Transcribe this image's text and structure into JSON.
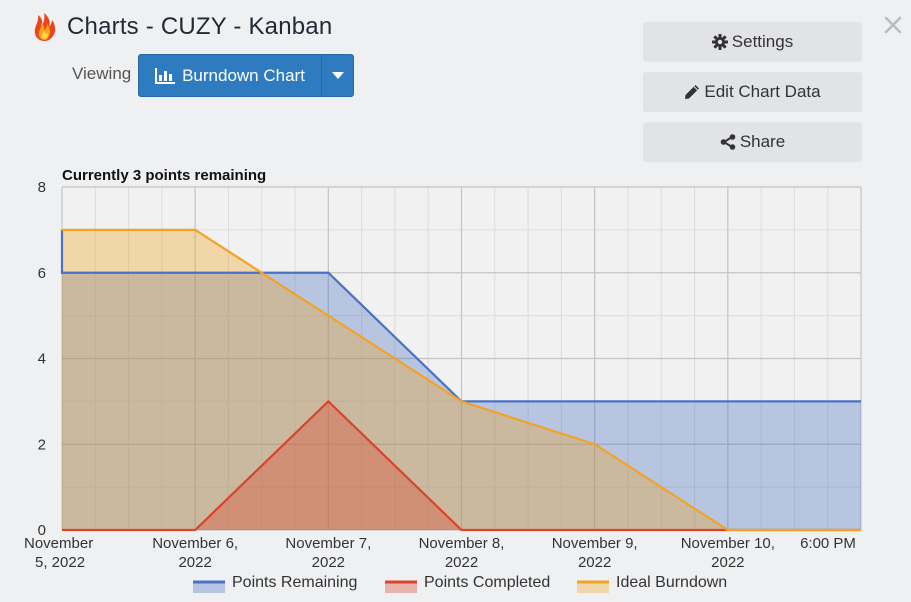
{
  "header": {
    "title": "Charts - CUZY - Kanban",
    "viewing_label": "Viewing",
    "chart_selector_label": "Burndown Chart"
  },
  "actions": {
    "settings_label": "Settings",
    "edit_label": "Edit Chart Data",
    "share_label": "Share"
  },
  "colors": {
    "remaining": "#4a72c4",
    "completed": "#d9442a",
    "ideal": "#f2a325",
    "button_primary": "#2f7bc0"
  },
  "chart_data": {
    "type": "area",
    "title": "Currently 3 points remaining",
    "x_ticks": [
      [
        "November",
        "5, 2022"
      ],
      [
        "November 6,",
        "2022"
      ],
      [
        "November 7,",
        "2022"
      ],
      [
        "November 8,",
        "2022"
      ],
      [
        "November 9,",
        "2022"
      ],
      [
        "November 10,",
        "2022"
      ],
      [
        "6:00 PM",
        ""
      ]
    ],
    "x_days": [
      0,
      1,
      2,
      3,
      4,
      5,
      6
    ],
    "y_ticks": [
      "0",
      "2",
      "4",
      "6",
      "8"
    ],
    "ylim": [
      0,
      8
    ],
    "grid": true,
    "legend_position": "bottom",
    "series": [
      {
        "name": "Points Remaining",
        "x": [
          0,
          0,
          2,
          3,
          6
        ],
        "y": [
          7,
          6,
          6,
          3,
          3
        ]
      },
      {
        "name": "Points Completed",
        "x": [
          0,
          1,
          2,
          3,
          6
        ],
        "y": [
          0,
          0,
          3,
          0,
          0
        ]
      },
      {
        "name": "Ideal Burndown",
        "x": [
          0,
          1,
          3,
          4,
          5,
          6
        ],
        "y": [
          7,
          7,
          3,
          2,
          0,
          0
        ]
      }
    ]
  }
}
